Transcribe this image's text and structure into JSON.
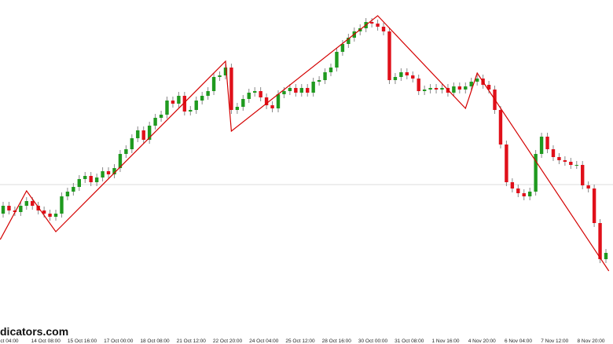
{
  "chart_data": {
    "type": "candlestick",
    "watermark": "dicators.com",
    "x_labels": [
      "ct 04:00",
      "14 Oct 08:00",
      "15 Oct 16:00",
      "17 Oct 00:00",
      "18 Oct 08:00",
      "21 Oct 12:00",
      "22 Oct 20:00",
      "24 Oct 04:00",
      "25 Oct 12:00",
      "28 Oct 16:00",
      "30 Oct 00:00",
      "31 Oct 08:00",
      "1 Nov 16:00",
      "4 Nov 20:00",
      "6 Nov 04:00",
      "7 Nov 12:00",
      "8 Nov 20:00"
    ],
    "ylim": [
      0,
      400
    ],
    "up_color": "#1f9a1f",
    "down_color": "#e0101a",
    "wick_color": "#888888",
    "reference_line": 165,
    "open": [
      128,
      138,
      132,
      130,
      138,
      144,
      138,
      132,
      128,
      124,
      128,
      150,
      156,
      162,
      172,
      176,
      168,
      174,
      182,
      178,
      186,
      204,
      210,
      224,
      234,
      222,
      240,
      250,
      254,
      272,
      268,
      278,
      258,
      260,
      272,
      278,
      284,
      302,
      304,
      314,
      260,
      264,
      274,
      282,
      284,
      276,
      266,
      262,
      280,
      284,
      288,
      282,
      288,
      282,
      296,
      298,
      308,
      314,
      334,
      344,
      352,
      360,
      364,
      372,
      370,
      366,
      360,
      298,
      302,
      308,
      304,
      300,
      284,
      286,
      288,
      286,
      288,
      282,
      290,
      286,
      290,
      296,
      300,
      292,
      286,
      260,
      216,
      168,
      160,
      154,
      150,
      156,
      204,
      226,
      210,
      200,
      196,
      194,
      190,
      190,
      164,
      160,
      116,
      70
    ],
    "high": [
      143,
      143,
      137,
      143,
      149,
      149,
      143,
      137,
      133,
      133,
      155,
      161,
      167,
      177,
      181,
      181,
      179,
      187,
      187,
      191,
      209,
      215,
      229,
      239,
      239,
      245,
      255,
      259,
      277,
      277,
      283,
      283,
      265,
      277,
      283,
      289,
      307,
      309,
      319,
      319,
      269,
      279,
      287,
      289,
      289,
      281,
      271,
      285,
      289,
      293,
      293,
      293,
      293,
      301,
      303,
      313,
      319,
      339,
      349,
      357,
      365,
      369,
      377,
      377,
      375,
      371,
      365,
      307,
      313,
      313,
      309,
      305,
      291,
      293,
      293,
      293,
      293,
      295,
      295,
      295,
      301,
      305,
      305,
      297,
      291,
      265,
      221,
      173,
      165,
      159,
      161,
      209,
      231,
      231,
      215,
      205,
      201,
      199,
      195,
      195,
      169,
      165,
      121,
      83
    ],
    "low": [
      123,
      127,
      125,
      125,
      133,
      133,
      127,
      123,
      119,
      119,
      123,
      145,
      151,
      157,
      167,
      163,
      163,
      169,
      173,
      173,
      181,
      199,
      205,
      219,
      217,
      217,
      235,
      245,
      249,
      263,
      263,
      253,
      253,
      255,
      267,
      273,
      279,
      297,
      299,
      255,
      255,
      259,
      269,
      277,
      271,
      261,
      257,
      257,
      275,
      279,
      277,
      277,
      277,
      277,
      291,
      293,
      303,
      309,
      329,
      339,
      347,
      355,
      359,
      365,
      361,
      355,
      293,
      293,
      297,
      299,
      295,
      279,
      279,
      281,
      281,
      281,
      277,
      277,
      281,
      281,
      285,
      291,
      287,
      281,
      255,
      211,
      163,
      155,
      149,
      145,
      145,
      151,
      199,
      205,
      195,
      191,
      189,
      185,
      185,
      159,
      155,
      111,
      65,
      65
    ],
    "close": [
      138,
      132,
      130,
      138,
      144,
      138,
      132,
      128,
      124,
      128,
      150,
      156,
      162,
      172,
      176,
      168,
      174,
      182,
      178,
      186,
      204,
      210,
      224,
      234,
      222,
      240,
      250,
      254,
      272,
      268,
      278,
      258,
      260,
      272,
      278,
      284,
      302,
      304,
      314,
      260,
      264,
      274,
      282,
      284,
      276,
      266,
      262,
      280,
      284,
      288,
      282,
      288,
      282,
      296,
      298,
      308,
      314,
      334,
      344,
      352,
      360,
      364,
      372,
      370,
      366,
      360,
      298,
      302,
      308,
      304,
      300,
      284,
      286,
      288,
      286,
      288,
      282,
      290,
      286,
      290,
      296,
      300,
      292,
      286,
      260,
      216,
      168,
      160,
      154,
      150,
      156,
      204,
      226,
      210,
      200,
      196,
      194,
      190,
      190,
      164,
      160,
      116,
      70,
      78
    ],
    "zigzag": {
      "color": "#d40000",
      "x": [
        0.5,
        5,
        10,
        39,
        40,
        65,
        80,
        82,
        104.5
      ],
      "values": [
        95,
        157,
        105,
        322,
        233,
        380,
        262,
        307,
        55
      ]
    }
  }
}
